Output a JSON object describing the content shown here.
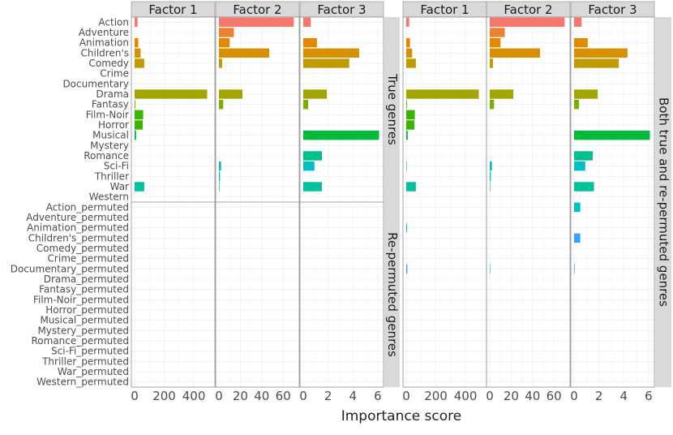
{
  "chart_data": {
    "type": "bar",
    "orientation": "horizontal",
    "xlabel": "Importance score",
    "panels": [
      {
        "title": "",
        "facet_columns": [
          "Factor 1",
          "Factor 2",
          "Factor 3"
        ],
        "facet_rows": [
          "True genres",
          "Re-permuted genres"
        ],
        "xlim": [
          [
            0,
            520
          ],
          [
            0,
            72
          ],
          [
            0,
            6.2
          ]
        ],
        "xticks": [
          {
            "values": [
              0,
              200,
              400
            ],
            "labels": [
              "0",
              "200",
              "400"
            ]
          },
          {
            "values": [
              0,
              20,
              40,
              60
            ],
            "labels": [
              "0",
              "20",
              "40",
              "60"
            ]
          },
          {
            "values": [
              0,
              2,
              4,
              6
            ],
            "labels": [
              "0",
              "2",
              "4",
              "6"
            ]
          }
        ]
      },
      {
        "title": "",
        "facet_columns": [
          "Factor 1",
          "Factor 2",
          "Factor 3"
        ],
        "facet_rows": [
          "Both true and re-permuted genres"
        ],
        "xlim": [
          [
            0,
            520
          ],
          [
            0,
            72
          ],
          [
            0,
            6.2
          ]
        ],
        "xticks": [
          {
            "values": [
              0,
              200,
              400
            ],
            "labels": [
              "0",
              "200",
              "400"
            ]
          },
          {
            "values": [
              0,
              20,
              40,
              60
            ],
            "labels": [
              "0",
              "20",
              "40",
              "60"
            ]
          },
          {
            "values": [
              0,
              2,
              4,
              6
            ],
            "labels": [
              "0",
              "2",
              "4",
              "6"
            ]
          }
        ]
      }
    ],
    "categories": [
      "Action",
      "Adventure",
      "Animation",
      "Children's",
      "Comedy",
      "Crime",
      "Documentary",
      "Drama",
      "Fantasy",
      "Film-Noir",
      "Horror",
      "Musical",
      "Mystery",
      "Romance",
      "Sci-Fi",
      "Thriller",
      "War",
      "Western",
      "Action_permuted",
      "Adventure_permuted",
      "Animation_permuted",
      "Children's_permuted",
      "Comedy_permuted",
      "Crime_permuted",
      "Documentary_permuted",
      "Drama_permuted",
      "Fantasy_permuted",
      "Film-Noir_permuted",
      "Horror_permuted",
      "Musical_permuted",
      "Mystery_permuted",
      "Romance_permuted",
      "Sci-Fi_permuted",
      "Thriller_permuted",
      "War_permuted",
      "Western_permuted"
    ],
    "colors": [
      "#F8766D",
      "#EA8331",
      "#E38900",
      "#D89000",
      "#C09B00",
      "#A3A500",
      "#9DA700",
      "#A3A500",
      "#7CAE00",
      "#39B600",
      "#39B600",
      "#00BA38",
      "#00BC59",
      "#00C08B",
      "#00BFC4",
      "#00C1A9",
      "#00C19A",
      "#00BD5C",
      "#00BFC4",
      "#00BAE0",
      "#00B4F0",
      "#35A2FF",
      "#00A9FF",
      "#9590FF",
      "#4EA0FF",
      "#C77CFF",
      "#C77CFF",
      "#E76BF3",
      "#E76BF3",
      "#FA62DB",
      "#FF61C3",
      "#FF61C3",
      "#FF62BC",
      "#FF62BC",
      "#FF6C91",
      "#F8766D"
    ],
    "series": [
      {
        "panel": 0,
        "factor": "Factor 1",
        "values": [
          20,
          0,
          25,
          40,
          65,
          0,
          0,
          490,
          5,
          58,
          55,
          10,
          0,
          0,
          0,
          0,
          65,
          0,
          0,
          0,
          0,
          0,
          0,
          0,
          0,
          0,
          0,
          0,
          0,
          0,
          0,
          0,
          0,
          0,
          0,
          0
        ]
      },
      {
        "panel": 0,
        "factor": "Factor 2",
        "values": [
          70,
          14,
          10,
          47,
          3,
          0,
          0,
          22,
          4,
          0,
          0,
          0,
          0,
          0,
          2,
          1,
          0.5,
          0,
          0,
          0,
          0,
          0,
          0,
          0,
          0,
          0,
          0,
          0,
          0,
          0,
          0,
          0,
          0,
          0,
          0,
          0
        ]
      },
      {
        "panel": 0,
        "factor": "Factor 3",
        "values": [
          0.6,
          0,
          1.1,
          4.5,
          3.7,
          0,
          0,
          1.9,
          0.4,
          0,
          0,
          6.1,
          0,
          1.5,
          0.9,
          0,
          1.5,
          0,
          0,
          0,
          0,
          0,
          0,
          0,
          0,
          0,
          0,
          0,
          0,
          0,
          0,
          0,
          0,
          0,
          0,
          0
        ]
      },
      {
        "panel": 1,
        "factor": "Factor 1",
        "values": [
          20,
          0,
          25,
          40,
          65,
          0,
          0,
          490,
          5,
          58,
          55,
          10,
          0,
          0,
          3,
          0,
          65,
          0,
          0,
          0,
          5,
          0,
          0,
          0,
          8,
          0,
          0,
          0,
          0,
          0,
          0,
          0,
          0,
          0,
          0,
          0
        ]
      },
      {
        "panel": 1,
        "factor": "Factor 2",
        "values": [
          70,
          14,
          10,
          47,
          3,
          0,
          0,
          22,
          4,
          0,
          0,
          0,
          0,
          0,
          2,
          1,
          0.5,
          0,
          0,
          0,
          0,
          0,
          0,
          0,
          0.5,
          0,
          0,
          0,
          0,
          0,
          0,
          0,
          0,
          0,
          0,
          0
        ]
      },
      {
        "panel": 1,
        "factor": "Factor 3",
        "values": [
          0.6,
          0,
          1.1,
          4.3,
          3.6,
          0,
          0,
          1.9,
          0.4,
          0,
          0,
          6.1,
          0,
          1.5,
          0.9,
          0,
          1.6,
          0,
          0.5,
          0,
          0,
          0.5,
          0,
          0,
          0.05,
          0,
          0,
          0,
          0,
          0,
          0,
          0,
          0,
          0,
          0,
          0
        ]
      }
    ]
  }
}
